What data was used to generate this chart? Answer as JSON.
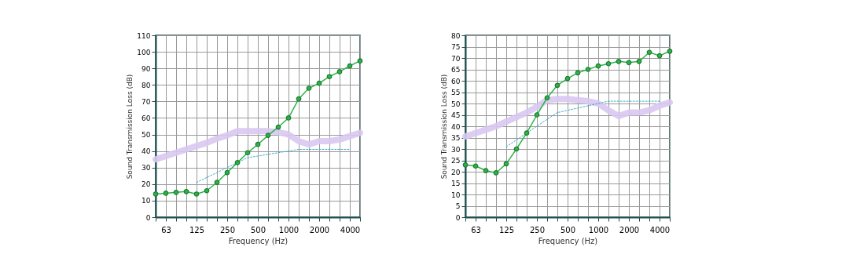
{
  "chart_data": [
    {
      "type": "line",
      "xlabel": "Frequency (Hz)",
      "ylabel": "Sound Transmission Loss (dB)",
      "categories": [
        null,
        "63",
        null,
        null,
        "125",
        null,
        null,
        "250",
        null,
        null,
        "500",
        null,
        null,
        "1000",
        null,
        null,
        "2000",
        null,
        null,
        "4000",
        null
      ],
      "ylim": [
        0,
        110
      ],
      "yticks": [
        0,
        10,
        20,
        30,
        40,
        50,
        60,
        70,
        80,
        90,
        100,
        110
      ],
      "grid": true,
      "legend": false,
      "series": [
        {
          "color": "#d9c8f2",
          "marker": "none",
          "line_style": "solid",
          "values": [
            35,
            37,
            39,
            41,
            43,
            45,
            47.5,
            49.5,
            52,
            52,
            52,
            52,
            51.5,
            50,
            46,
            44,
            46,
            46,
            47,
            49,
            51
          ]
        },
        {
          "color": "#3aaecc",
          "marker": "none",
          "line_style": "dotted",
          "values": [
            null,
            null,
            null,
            null,
            21,
            24,
            27,
            30,
            33,
            36,
            37,
            38,
            39,
            40,
            41,
            41,
            41,
            41,
            41,
            41,
            null
          ]
        },
        {
          "color": "#2db34a",
          "marker": "circle",
          "line_style": "solid",
          "values": [
            14,
            14.5,
            15,
            15.5,
            14,
            16,
            21,
            27,
            33,
            39,
            44,
            49.5,
            54.5,
            60,
            71.5,
            78,
            81,
            85,
            88,
            91.5,
            94.5
          ]
        }
      ]
    },
    {
      "type": "line",
      "xlabel": "Frequency (Hz)",
      "ylabel": "Sound Transmission Loss (dB)",
      "categories": [
        null,
        "63",
        null,
        null,
        "125",
        null,
        null,
        "250",
        null,
        null,
        "500",
        null,
        null,
        "1000",
        null,
        null,
        "2000",
        null,
        null,
        "4000",
        null
      ],
      "ylim": [
        0,
        80
      ],
      "yticks": [
        0,
        5,
        10,
        15,
        20,
        25,
        30,
        35,
        40,
        45,
        50,
        55,
        60,
        65,
        70,
        75,
        80
      ],
      "grid": true,
      "legend": false,
      "series": [
        {
          "color": "#d9c8f2",
          "marker": "none",
          "line_style": "solid",
          "values": [
            35.5,
            37,
            38.5,
            40,
            42,
            44,
            46,
            48.5,
            51.5,
            52,
            52,
            51.5,
            51,
            50,
            47,
            44.5,
            46,
            46,
            47,
            49,
            50.5
          ]
        },
        {
          "color": "#3aaecc",
          "marker": "none",
          "line_style": "dotted",
          "values": [
            null,
            null,
            null,
            null,
            31,
            34,
            37,
            40,
            43,
            46,
            47,
            48,
            49,
            50,
            51,
            51,
            51,
            51,
            51,
            51,
            null
          ]
        },
        {
          "color": "#2db34a",
          "marker": "circle",
          "line_style": "solid",
          "values": [
            23,
            22.5,
            20.5,
            19.5,
            23.5,
            30,
            37,
            45,
            52.5,
            58,
            61,
            63.5,
            65,
            66.5,
            67.5,
            68.5,
            68,
            68.5,
            72.5,
            71,
            73
          ]
        }
      ]
    }
  ]
}
